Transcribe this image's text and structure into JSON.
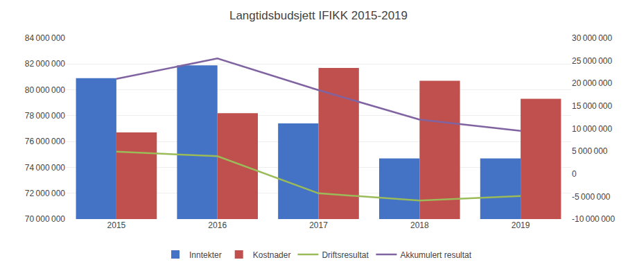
{
  "chart_data": {
    "type": "bar",
    "title": "Langtidsbudsjett IFIKK 2015-2019",
    "categories": [
      "2015",
      "2016",
      "2017",
      "2018",
      "2019"
    ],
    "series": [
      {
        "name": "Inntekter",
        "type": "bar",
        "color": "#4472C4",
        "values": [
          80900000,
          81900000,
          77400000,
          74700000,
          74700000
        ]
      },
      {
        "name": "Kostnader",
        "type": "bar",
        "color": "#C0504D",
        "values": [
          76700000,
          78200000,
          81700000,
          80700000,
          79300000
        ]
      },
      {
        "name": "Driftsresultat",
        "type": "line",
        "axis": "y2",
        "color": "#9BBB59",
        "values": [
          4900000,
          3900000,
          -4300000,
          -5900000,
          -4900000
        ]
      },
      {
        "name": "Akkumulert resultat",
        "type": "line",
        "axis": "y2",
        "color": "#8064A2",
        "values": [
          21000000,
          25500000,
          18500000,
          12000000,
          9500000
        ]
      }
    ],
    "ylim": [
      70000000,
      84000000
    ],
    "yticks": [
      {
        "value": 70000000,
        "label": "70 000 000"
      },
      {
        "value": 72000000,
        "label": "72 000 000"
      },
      {
        "value": 74000000,
        "label": "74 000 000"
      },
      {
        "value": 76000000,
        "label": "76 000 000"
      },
      {
        "value": 78000000,
        "label": "78 000 000"
      },
      {
        "value": 80000000,
        "label": "80 000 000"
      },
      {
        "value": 82000000,
        "label": "82 000 000"
      },
      {
        "value": 84000000,
        "label": "84 000 000"
      }
    ],
    "y2lim": [
      -10000000,
      30000000
    ],
    "y2ticks": [
      {
        "value": -10000000,
        "label": "-10 000 000"
      },
      {
        "value": -5000000,
        "label": "-5 000 000"
      },
      0,
      {
        "value": 5000000,
        "label": "5 000 000"
      },
      {
        "value": 10000000,
        "label": "10 000 000"
      },
      {
        "value": 15000000,
        "label": "15 000 000"
      },
      {
        "value": 20000000,
        "label": "20 000 000"
      },
      {
        "value": 25000000,
        "label": "25 000 000"
      },
      {
        "value": 30000000,
        "label": "30 000 000"
      }
    ],
    "grid": true,
    "legend": "bottom"
  }
}
